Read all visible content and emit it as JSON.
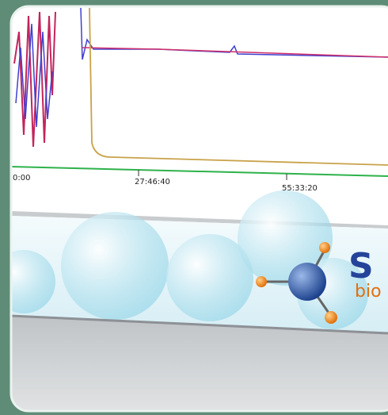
{
  "axis": {
    "tick_labels": [
      "0:00",
      "27:46:40",
      "55:33:20"
    ]
  },
  "logo": {
    "letter": "S",
    "subtext": "bio"
  }
}
